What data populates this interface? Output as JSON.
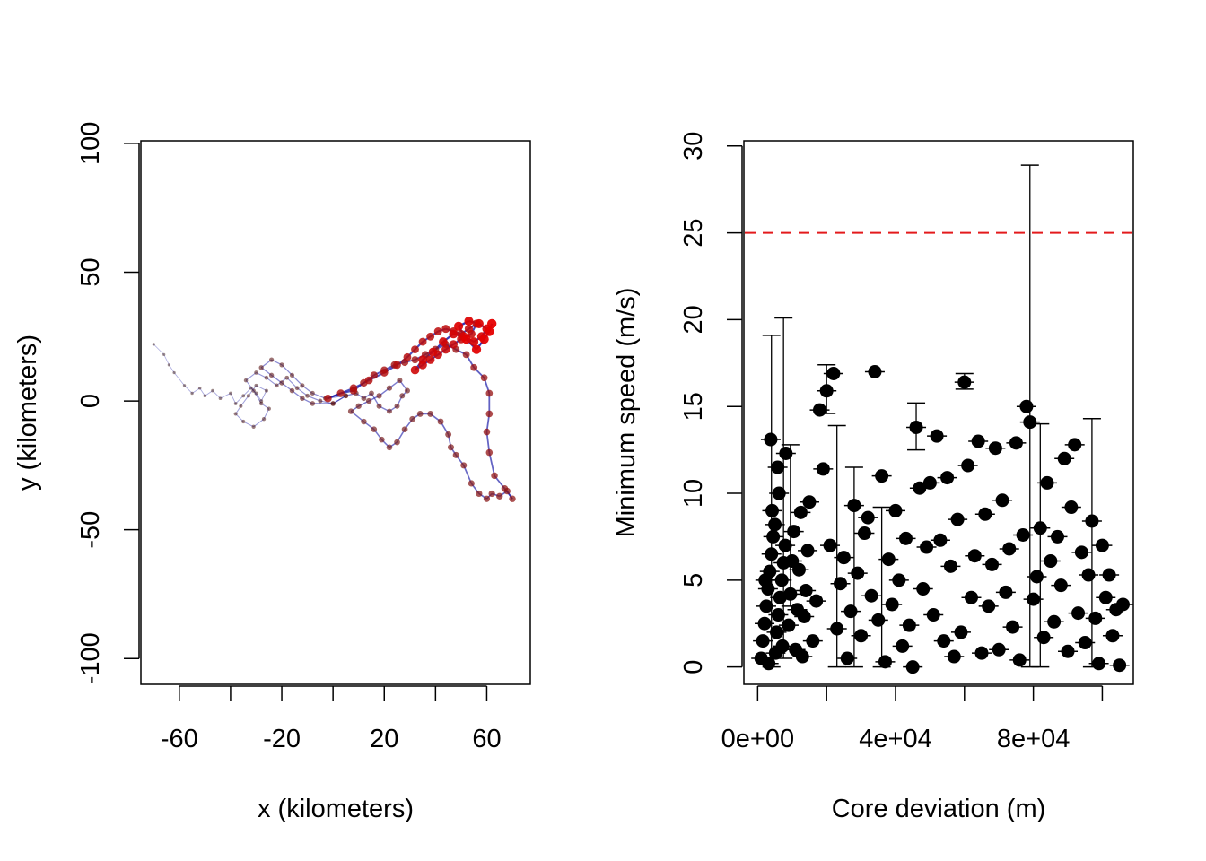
{
  "colors": {
    "track_blue": "#1a1aa8",
    "track_dark": "#2b0a0a",
    "track_red": "#e60000",
    "threshold_line": "#e31a1c",
    "points": "#000000"
  },
  "chart_data": [
    {
      "type": "scatter",
      "subtype": "trajectory",
      "xlabel": "x (kilometers)",
      "ylabel": "y (kilometers)",
      "xlim": [
        -75,
        77
      ],
      "ylim": [
        -110,
        101
      ],
      "xticks": [
        "-60",
        "-20",
        "20",
        "60"
      ],
      "yticks": [
        "-100",
        "-50",
        "0",
        "50",
        "100"
      ],
      "grid": false,
      "legend": "none",
      "track": [
        [
          -70,
          22
        ],
        [
          -66,
          18
        ],
        [
          -64,
          14
        ],
        [
          -62,
          11
        ],
        [
          -58,
          6
        ],
        [
          -55,
          3
        ],
        [
          -52,
          5
        ],
        [
          -50,
          2
        ],
        [
          -47,
          4
        ],
        [
          -44,
          1
        ],
        [
          -40,
          3
        ],
        [
          -38,
          -1
        ],
        [
          -35,
          2
        ],
        [
          -32,
          5
        ],
        [
          -30,
          3
        ],
        [
          -28,
          0
        ],
        [
          -26,
          4
        ],
        [
          -30,
          6
        ],
        [
          -33,
          2
        ],
        [
          -36,
          -2
        ],
        [
          -38,
          -5
        ],
        [
          -35,
          -8
        ],
        [
          -31,
          -10
        ],
        [
          -27,
          -7
        ],
        [
          -25,
          -3
        ],
        [
          -28,
          -1
        ],
        [
          -31,
          4
        ],
        [
          -34,
          8
        ],
        [
          -30,
          11
        ],
        [
          -26,
          9
        ],
        [
          -22,
          6
        ],
        [
          -18,
          9
        ],
        [
          -14,
          5
        ],
        [
          -10,
          2
        ],
        [
          -5,
          0
        ],
        [
          0,
          -1
        ],
        [
          5,
          2
        ],
        [
          -3,
          1
        ],
        [
          -8,
          3
        ],
        [
          -12,
          6
        ],
        [
          -16,
          10
        ],
        [
          -20,
          14
        ],
        [
          -24,
          16
        ],
        [
          -28,
          13
        ],
        [
          -24,
          10
        ],
        [
          -20,
          7
        ],
        [
          -16,
          4
        ],
        [
          -12,
          1
        ],
        [
          -8,
          -1
        ],
        [
          0,
          -1
        ],
        [
          5,
          2
        ],
        [
          9,
          3
        ],
        [
          12,
          1
        ],
        [
          15,
          3
        ],
        [
          18,
          -2
        ],
        [
          22,
          -4
        ],
        [
          25,
          -2
        ],
        [
          27,
          2
        ],
        [
          29,
          4
        ],
        [
          26,
          8
        ],
        [
          22,
          5
        ],
        [
          18,
          2
        ],
        [
          14,
          0
        ],
        [
          10,
          -2
        ],
        [
          7,
          -4
        ],
        [
          12,
          -8
        ],
        [
          16,
          -11
        ],
        [
          19,
          -15
        ],
        [
          22,
          -18
        ],
        [
          25,
          -16
        ],
        [
          28,
          -11
        ],
        [
          31,
          -7
        ],
        [
          34,
          -5
        ],
        [
          38,
          -5
        ],
        [
          42,
          -8
        ],
        [
          45,
          -13
        ],
        [
          46,
          -18
        ],
        [
          48,
          -21
        ],
        [
          51,
          -25
        ],
        [
          54,
          -32
        ],
        [
          57,
          -36
        ],
        [
          60,
          -38
        ],
        [
          62,
          -36
        ],
        [
          65,
          -37
        ],
        [
          68,
          -35
        ],
        [
          70,
          -38
        ],
        [
          67,
          -34
        ],
        [
          63,
          -29
        ],
        [
          61,
          -20
        ],
        [
          60,
          -12
        ],
        [
          61,
          -5
        ],
        [
          61,
          3
        ],
        [
          59,
          9
        ],
        [
          55,
          13
        ],
        [
          52,
          18
        ],
        [
          48,
          20
        ],
        [
          44,
          22
        ],
        [
          40,
          20
        ],
        [
          36,
          18
        ],
        [
          32,
          16
        ],
        [
          28,
          15
        ],
        [
          24,
          14
        ],
        [
          20,
          12
        ],
        [
          16,
          10
        ],
        [
          12,
          7
        ],
        [
          8,
          4
        ],
        [
          3,
          3
        ],
        [
          -2,
          1
        ],
        [
          8,
          5
        ],
        [
          14,
          8
        ],
        [
          20,
          11
        ],
        [
          25,
          14
        ],
        [
          29,
          17
        ],
        [
          32,
          20
        ],
        [
          35,
          23
        ],
        [
          38,
          25
        ],
        [
          41,
          27
        ],
        [
          44,
          28
        ],
        [
          47,
          27
        ],
        [
          50,
          26
        ],
        [
          53,
          28
        ],
        [
          56,
          30
        ],
        [
          54,
          26
        ],
        [
          50,
          24
        ],
        [
          47,
          22
        ],
        [
          44,
          20
        ],
        [
          41,
          18
        ],
        [
          38,
          16
        ],
        [
          35,
          14
        ],
        [
          32,
          12
        ],
        [
          35,
          16
        ],
        [
          39,
          19
        ],
        [
          43,
          23
        ],
        [
          47,
          26
        ],
        [
          51,
          25
        ],
        [
          55,
          23
        ],
        [
          58,
          25
        ],
        [
          60,
          28
        ],
        [
          57,
          30
        ],
        [
          53,
          31
        ],
        [
          49,
          29
        ],
        [
          52,
          24
        ],
        [
          56,
          20
        ],
        [
          59,
          24
        ],
        [
          61,
          27
        ],
        [
          62,
          30
        ]
      ]
    },
    {
      "type": "scatter",
      "subtype": "points_with_error_bars",
      "xlabel": "Core deviation (m)",
      "ylabel": "Minimum speed (m/s)",
      "xlim": [
        -4000,
        109000
      ],
      "ylim": [
        -1,
        30.3
      ],
      "xticks": [
        "0e+00",
        "4e+04",
        "8e+04"
      ],
      "yticks": [
        "0",
        "5",
        "10",
        "15",
        "20",
        "25",
        "30"
      ],
      "threshold": 25,
      "grid": false,
      "legend": "none",
      "points": [
        [
          1000,
          0.5
        ],
        [
          1500,
          1.5
        ],
        [
          2000,
          2.5
        ],
        [
          2500,
          3.5
        ],
        [
          3000,
          4.5
        ],
        [
          3500,
          5.5
        ],
        [
          4000,
          6.5
        ],
        [
          4500,
          7.5
        ],
        [
          5000,
          8.2
        ],
        [
          5500,
          2.0
        ],
        [
          6000,
          3.0
        ],
        [
          6500,
          4.0
        ],
        [
          7000,
          5.0
        ],
        [
          7500,
          6.0
        ],
        [
          8000,
          7.0
        ],
        [
          3200,
          0.2
        ],
        [
          5200,
          0.8
        ],
        [
          7200,
          1.2
        ],
        [
          2200,
          5.0
        ],
        [
          4200,
          9.0
        ],
        [
          6200,
          10.0
        ],
        [
          3800,
          13.1
        ],
        [
          5800,
          11.5
        ],
        [
          8200,
          12.3
        ],
        [
          9000,
          2.4
        ],
        [
          9500,
          4.2
        ],
        [
          10000,
          6.1
        ],
        [
          10500,
          7.8
        ],
        [
          11000,
          1.0
        ],
        [
          11500,
          3.3
        ],
        [
          12000,
          5.6
        ],
        [
          12500,
          8.9
        ],
        [
          13000,
          0.6
        ],
        [
          13500,
          2.9
        ],
        [
          14000,
          4.4
        ],
        [
          14500,
          6.7
        ],
        [
          15000,
          9.5
        ],
        [
          16000,
          1.5
        ],
        [
          17000,
          3.8
        ],
        [
          18000,
          14.8
        ],
        [
          19000,
          11.4
        ],
        [
          20000,
          15.9
        ],
        [
          21000,
          7.0
        ],
        [
          22000,
          16.9
        ],
        [
          23000,
          2.2
        ],
        [
          24000,
          4.8
        ],
        [
          25000,
          6.3
        ],
        [
          26000,
          0.5
        ],
        [
          27000,
          3.2
        ],
        [
          28000,
          9.3
        ],
        [
          29000,
          5.4
        ],
        [
          30000,
          1.8
        ],
        [
          31000,
          7.7
        ],
        [
          32000,
          8.6
        ],
        [
          33000,
          4.1
        ],
        [
          34000,
          17.0
        ],
        [
          35000,
          2.7
        ],
        [
          36000,
          11.0
        ],
        [
          37000,
          0.3
        ],
        [
          38000,
          6.2
        ],
        [
          39000,
          3.6
        ],
        [
          40000,
          9.0
        ],
        [
          41000,
          5.0
        ],
        [
          42000,
          1.2
        ],
        [
          43000,
          7.4
        ],
        [
          44000,
          2.4
        ],
        [
          45000,
          0.0
        ],
        [
          46000,
          13.8
        ],
        [
          47000,
          10.3
        ],
        [
          48000,
          4.5
        ],
        [
          49000,
          6.9
        ],
        [
          50000,
          10.6
        ],
        [
          51000,
          3.0
        ],
        [
          52000,
          13.3
        ],
        [
          53000,
          7.3
        ],
        [
          54000,
          1.5
        ],
        [
          55000,
          10.9
        ],
        [
          56000,
          5.8
        ],
        [
          57000,
          0.6
        ],
        [
          58000,
          8.5
        ],
        [
          59000,
          2.0
        ],
        [
          60000,
          16.4
        ],
        [
          61000,
          11.6
        ],
        [
          62000,
          4.0
        ],
        [
          63000,
          6.4
        ],
        [
          64000,
          13.0
        ],
        [
          65000,
          0.8
        ],
        [
          66000,
          8.8
        ],
        [
          67000,
          3.5
        ],
        [
          68000,
          5.9
        ],
        [
          69000,
          12.6
        ],
        [
          70000,
          1.0
        ],
        [
          71000,
          9.6
        ],
        [
          72000,
          4.3
        ],
        [
          73000,
          6.8
        ],
        [
          74000,
          2.3
        ],
        [
          75000,
          12.9
        ],
        [
          76000,
          0.4
        ],
        [
          77000,
          7.6
        ],
        [
          78000,
          15.0
        ],
        [
          79000,
          14.1
        ],
        [
          80000,
          3.9
        ],
        [
          81000,
          5.2
        ],
        [
          82000,
          8.0
        ],
        [
          83000,
          1.7
        ],
        [
          84000,
          10.6
        ],
        [
          85000,
          6.1
        ],
        [
          86000,
          2.6
        ],
        [
          87000,
          7.5
        ],
        [
          88000,
          4.7
        ],
        [
          89000,
          12.0
        ],
        [
          90000,
          0.9
        ],
        [
          91000,
          9.2
        ],
        [
          92000,
          12.8
        ],
        [
          93000,
          3.1
        ],
        [
          94000,
          6.6
        ],
        [
          95000,
          1.4
        ],
        [
          96000,
          5.3
        ],
        [
          97000,
          8.4
        ],
        [
          98000,
          2.8
        ],
        [
          99000,
          0.2
        ],
        [
          100000,
          7.0
        ],
        [
          101000,
          4.0
        ],
        [
          102000,
          5.3
        ],
        [
          103000,
          1.8
        ],
        [
          104000,
          3.3
        ],
        [
          105000,
          0.1
        ],
        [
          106000,
          3.6
        ]
      ],
      "error_bars": [
        [
          4000,
          0.0,
          19.1
        ],
        [
          7500,
          0.5,
          20.1
        ],
        [
          9500,
          3.5,
          12.8
        ],
        [
          20000,
          14.6,
          17.4
        ],
        [
          23000,
          0.0,
          13.9
        ],
        [
          28000,
          0.0,
          11.5
        ],
        [
          36000,
          0.0,
          9.2
        ],
        [
          46000,
          12.5,
          15.2
        ],
        [
          60000,
          16.0,
          16.9
        ],
        [
          79000,
          0.0,
          28.9
        ],
        [
          82000,
          0.0,
          14.0
        ],
        [
          97000,
          0.0,
          14.3
        ]
      ]
    }
  ]
}
